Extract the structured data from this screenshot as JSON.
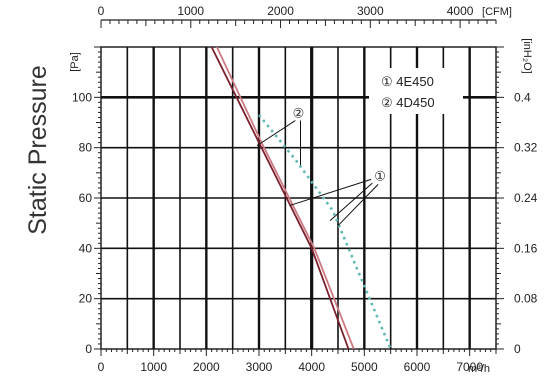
{
  "chart_data": {
    "type": "line",
    "title": "",
    "ylabel": "Static Pressure",
    "x_primary": {
      "unit": "m³/h",
      "range": [
        0,
        7500
      ],
      "ticks": [
        "0",
        "1000",
        "2000",
        "3000",
        "4000",
        "5000",
        "6000",
        "7000"
      ]
    },
    "x_secondary": {
      "unit": "[CFM]",
      "range": [
        0,
        4400
      ],
      "ticks": [
        "0",
        "1000",
        "2000",
        "3000",
        "4000"
      ]
    },
    "y_primary": {
      "unit": "[Pa]",
      "range": [
        0,
        120
      ],
      "ticks": [
        "0",
        "20",
        "40",
        "60",
        "80",
        "100"
      ]
    },
    "y_secondary": {
      "unit": "[inH₂O]",
      "ticks": [
        "0",
        "0.08",
        "0.16",
        "0.24",
        "0.32",
        "0.4"
      ]
    },
    "grid": true,
    "legend_position": "top-right",
    "legend": [
      {
        "marker": "①",
        "label": "4E450"
      },
      {
        "marker": "②",
        "label": "4D450"
      }
    ],
    "series": [
      {
        "marker": "1",
        "color": "#7a1f2b",
        "points": [
          [
            2100,
            120
          ],
          [
            3000,
            82
          ],
          [
            4000,
            40
          ],
          [
            4700,
            0
          ]
        ]
      },
      {
        "marker": "1",
        "color": "#cc7a82",
        "points": [
          [
            2200,
            120
          ],
          [
            3050,
            82
          ],
          [
            4050,
            40
          ],
          [
            4800,
            0
          ]
        ]
      },
      {
        "marker": "2",
        "color": "#5fb8b2",
        "dashed": true,
        "points": [
          [
            3000,
            93
          ],
          [
            3700,
            75
          ],
          [
            4400,
            55
          ],
          [
            5500,
            0
          ]
        ]
      }
    ],
    "annotations": [
      {
        "marker": "②",
        "at": [
          3750,
          94
        ]
      },
      {
        "marker": "①",
        "at": [
          5300,
          69
        ]
      }
    ]
  }
}
